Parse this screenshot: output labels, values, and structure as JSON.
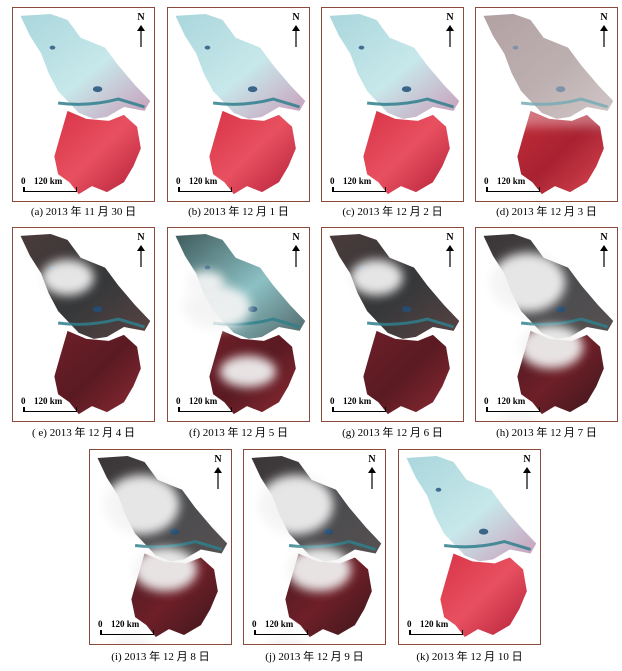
{
  "figure": {
    "north_label": "N",
    "scale_zero": "0",
    "scale_distance": "120 km",
    "panels": [
      {
        "id": "a",
        "caption": "(a) 2013 年 11 月 30 日",
        "palette": "false-color-clear"
      },
      {
        "id": "b",
        "caption": "(b) 2013 年 12 月 1 日",
        "palette": "false-color-clear"
      },
      {
        "id": "c",
        "caption": "(c) 2013 年 12 月 2 日",
        "palette": "false-color-clear"
      },
      {
        "id": "d",
        "caption": "(d) 2013 年 12 月 3 日",
        "palette": "false-color-haze"
      },
      {
        "id": "e",
        "caption": "( e) 2013 年 12 月 4 日",
        "palette": "dark-with-cloud"
      },
      {
        "id": "f",
        "caption": "(f) 2013 年 12 月 5 日",
        "palette": "teal-with-cloud"
      },
      {
        "id": "g",
        "caption": "(g) 2013 年 12 月 6 日",
        "palette": "dark-with-cloud"
      },
      {
        "id": "h",
        "caption": "(h) 2013 年 12 月 7 日",
        "palette": "dark-heavy-cloud"
      },
      {
        "id": "i",
        "caption": "(i) 2013 年 12 月 8 日",
        "palette": "dark-heavy-cloud"
      },
      {
        "id": "j",
        "caption": "(j) 2013 年 12 月 9 日",
        "palette": "dark-heavy-cloud"
      },
      {
        "id": "k",
        "caption": "(k) 2013 年 12 月 10 日",
        "palette": "false-color-clear"
      }
    ]
  }
}
